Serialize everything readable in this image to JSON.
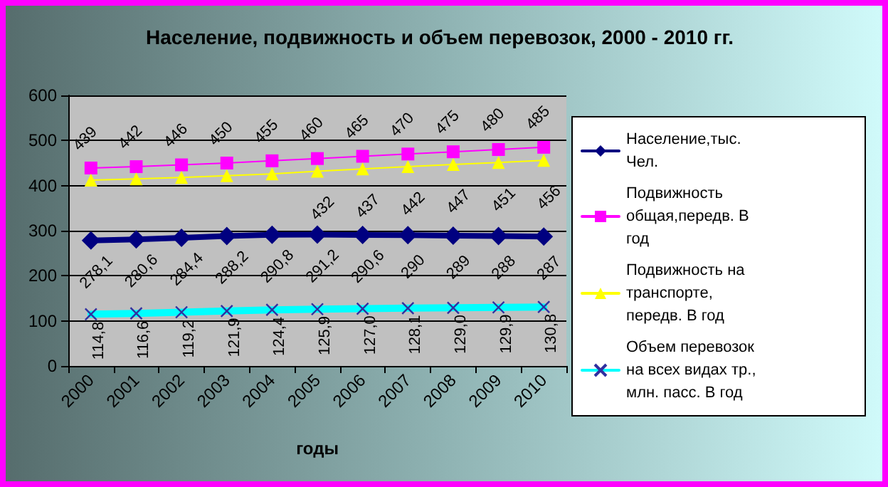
{
  "chart_data": {
    "type": "line",
    "title": "Население, подвижность и объем перевозок, 2000 - 2010 гг.",
    "xlabel": "годы",
    "categories": [
      "2000",
      "2001",
      "2002",
      "2003",
      "2004",
      "2005",
      "2006",
      "2007",
      "2008",
      "2009",
      "2010"
    ],
    "series": [
      {
        "name": "Население,тыс. Чел.",
        "color": "#000080",
        "marker": "diamond",
        "values": [
          278.1,
          280.6,
          284.4,
          288.2,
          290.8,
          291.2,
          290.6,
          290,
          289,
          288,
          287
        ],
        "value_labels": [
          "278,1",
          "280,6",
          "284,4",
          "288,2",
          "290,8",
          "291,2",
          "290,6",
          "290",
          "289",
          "288",
          "287"
        ]
      },
      {
        "name": "Подвижность общая,передв. В год",
        "color": "#ff00ff",
        "marker": "square",
        "values": [
          439,
          442,
          446,
          450,
          455,
          460,
          465,
          470,
          475,
          480,
          485
        ],
        "value_labels": [
          "439",
          "442",
          "446",
          "450",
          "455",
          "460",
          "465",
          "470",
          "475",
          "480",
          "485"
        ]
      },
      {
        "name": "Подвижность на транспорте, передв. В год",
        "color": "#ffff00",
        "marker": "triangle",
        "values": [
          412,
          415,
          418,
          422,
          426,
          432,
          437,
          442,
          447,
          451,
          456
        ],
        "value_labels": [
          null,
          null,
          null,
          null,
          null,
          "432",
          "437",
          "442",
          "447",
          "451",
          "456"
        ]
      },
      {
        "name": "Объем перевозок на всех видах тр., млн. пасс. В год",
        "color": "#00ffff",
        "marker": "cross",
        "values": [
          114.8,
          116.6,
          119.2,
          121.9,
          124.4,
          125.9,
          127.0,
          128.1,
          129.0,
          129.9,
          130.8
        ],
        "value_labels": [
          "114,8",
          "116,6",
          "119,2",
          "121,9",
          "124,4",
          "125,9",
          "127,0",
          "128,1",
          "129,0",
          "129,9",
          "130,8"
        ]
      }
    ],
    "ylim": [
      0,
      600
    ],
    "yticks": [
      0,
      100,
      200,
      300,
      400,
      500,
      600
    ],
    "grid": "y",
    "legend": "right"
  }
}
